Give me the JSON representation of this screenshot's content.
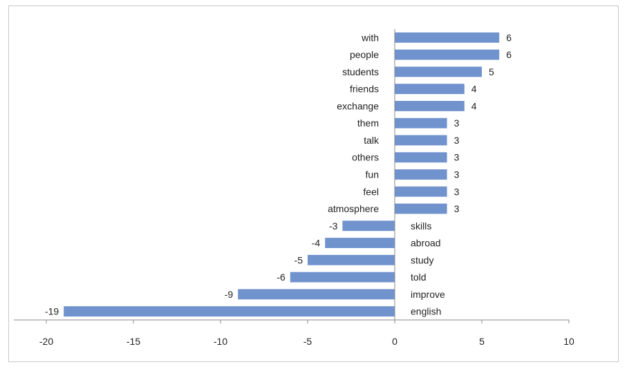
{
  "chart_data": {
    "type": "bar",
    "orientation": "horizontal",
    "title": "",
    "xlabel": "",
    "ylabel": "",
    "xlim": [
      -20,
      10
    ],
    "xticks": [
      -20,
      -15,
      -10,
      -5,
      0,
      5,
      10
    ],
    "grid": false,
    "legend": "none",
    "bar_color": "#7092cd",
    "categories": [
      "with",
      "people",
      "students",
      "friends",
      "exchange",
      "them",
      "talk",
      "others",
      "fun",
      "feel",
      "atmosphere",
      "skills",
      "abroad",
      "study",
      "told",
      "improve",
      "english"
    ],
    "values": [
      6,
      6,
      5,
      4,
      4,
      3,
      3,
      3,
      3,
      3,
      3,
      -3,
      -4,
      -5,
      -6,
      -9,
      -19
    ]
  }
}
